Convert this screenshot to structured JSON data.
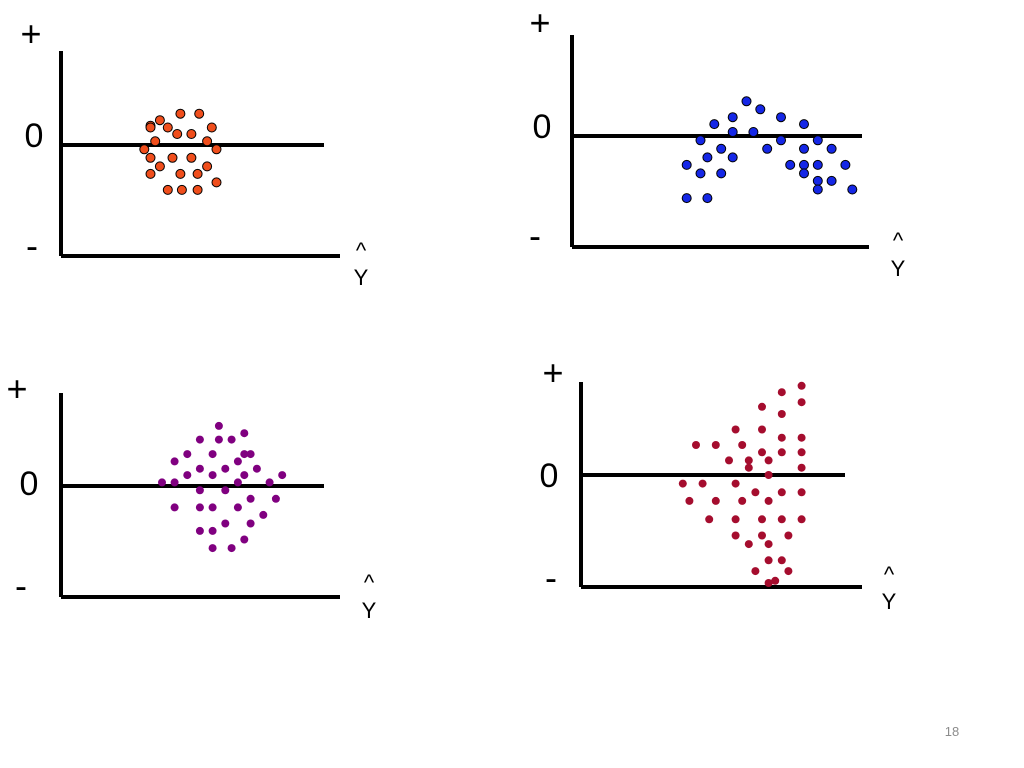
{
  "slide": {
    "page_number": "18"
  },
  "chart_data": [
    {
      "type": "scatter",
      "title": "",
      "ylabel_top": "+",
      "ylabel_mid": "0",
      "ylabel_bottom": "-",
      "xlabel_hat": "^",
      "xlabel": "Y",
      "xlim": [
        0,
        10
      ],
      "ylim": [
        -1,
        1
      ],
      "grid": false,
      "marker": {
        "color": "#f04e1c",
        "edge": "#000000",
        "style": "outlined"
      },
      "points": [
        [
          2.9,
          0.21
        ],
        [
          3.5,
          0.27
        ],
        [
          4.8,
          0.34
        ],
        [
          6.0,
          0.34
        ],
        [
          2.9,
          0.19
        ],
        [
          4.0,
          0.19
        ],
        [
          6.8,
          0.19
        ],
        [
          3.2,
          0.04
        ],
        [
          4.6,
          0.12
        ],
        [
          5.5,
          0.12
        ],
        [
          6.5,
          0.04
        ],
        [
          2.5,
          -0.04
        ],
        [
          7.1,
          -0.04
        ],
        [
          2.9,
          -0.12
        ],
        [
          3.5,
          -0.2
        ],
        [
          4.3,
          -0.12
        ],
        [
          5.5,
          -0.12
        ],
        [
          6.5,
          -0.2
        ],
        [
          2.9,
          -0.27
        ],
        [
          4.8,
          -0.27
        ],
        [
          5.9,
          -0.27
        ],
        [
          7.1,
          -0.35
        ],
        [
          4.0,
          -0.42
        ],
        [
          4.9,
          -0.42
        ],
        [
          5.9,
          -0.42
        ]
      ]
    },
    {
      "type": "scatter",
      "title": "",
      "ylabel_top": "+",
      "ylabel_mid": "0",
      "ylabel_bottom": "-",
      "xlabel_hat": "^",
      "xlabel": "Y",
      "xlim": [
        0,
        10
      ],
      "ylim": [
        -1,
        1
      ],
      "grid": false,
      "marker": {
        "color": "#1527e6",
        "edge": "#000000",
        "style": "outlined"
      },
      "points": [
        [
          5.5,
          0.35
        ],
        [
          6.1,
          0.27
        ],
        [
          4.9,
          0.19
        ],
        [
          7.0,
          0.19
        ],
        [
          4.1,
          0.12
        ],
        [
          8.0,
          0.12
        ],
        [
          4.9,
          0.04
        ],
        [
          5.8,
          0.04
        ],
        [
          3.5,
          -0.04
        ],
        [
          7.0,
          -0.04
        ],
        [
          8.6,
          -0.04
        ],
        [
          4.4,
          -0.12
        ],
        [
          6.4,
          -0.12
        ],
        [
          8.0,
          -0.12
        ],
        [
          9.2,
          -0.12
        ],
        [
          3.8,
          -0.2
        ],
        [
          4.9,
          -0.2
        ],
        [
          2.9,
          -0.27
        ],
        [
          7.4,
          -0.27
        ],
        [
          8.0,
          -0.27
        ],
        [
          8.6,
          -0.27
        ],
        [
          9.8,
          -0.27
        ],
        [
          3.5,
          -0.35
        ],
        [
          4.4,
          -0.35
        ],
        [
          8.0,
          -0.35
        ],
        [
          8.6,
          -0.42
        ],
        [
          9.2,
          -0.42
        ],
        [
          8.6,
          -0.5
        ],
        [
          10.1,
          -0.5
        ],
        [
          2.9,
          -0.58
        ],
        [
          3.8,
          -0.58
        ]
      ]
    },
    {
      "type": "scatter",
      "title": "",
      "ylabel_top": "+",
      "ylabel_mid": "0",
      "ylabel_bottom": "-",
      "xlabel_hat": "^",
      "xlabel": "Y",
      "xlim": [
        0,
        10
      ],
      "ylim": [
        -1,
        1
      ],
      "grid": false,
      "marker": {
        "color": "#800080",
        "edge": "#800080",
        "style": "filled"
      },
      "points": [
        [
          5.4,
          0.66
        ],
        [
          6.6,
          0.58
        ],
        [
          4.5,
          0.51
        ],
        [
          5.4,
          0.51
        ],
        [
          6.0,
          0.51
        ],
        [
          3.9,
          0.35
        ],
        [
          5.1,
          0.35
        ],
        [
          6.6,
          0.35
        ],
        [
          6.9,
          0.35
        ],
        [
          3.3,
          0.27
        ],
        [
          6.3,
          0.27
        ],
        [
          4.5,
          0.19
        ],
        [
          5.7,
          0.19
        ],
        [
          7.2,
          0.19
        ],
        [
          3.9,
          0.12
        ],
        [
          5.1,
          0.12
        ],
        [
          6.6,
          0.12
        ],
        [
          8.4,
          0.12
        ],
        [
          2.7,
          0.04
        ],
        [
          3.3,
          0.04
        ],
        [
          6.3,
          0.04
        ],
        [
          7.8,
          0.04
        ],
        [
          4.5,
          -0.04
        ],
        [
          5.7,
          -0.04
        ],
        [
          6.9,
          -0.12
        ],
        [
          8.1,
          -0.12
        ],
        [
          3.3,
          -0.2
        ],
        [
          4.5,
          -0.2
        ],
        [
          5.1,
          -0.2
        ],
        [
          6.3,
          -0.2
        ],
        [
          7.5,
          -0.27
        ],
        [
          5.7,
          -0.35
        ],
        [
          6.9,
          -0.35
        ],
        [
          4.5,
          -0.42
        ],
        [
          5.1,
          -0.42
        ],
        [
          6.6,
          -0.5
        ],
        [
          5.1,
          -0.58
        ],
        [
          6.0,
          -0.58
        ]
      ]
    },
    {
      "type": "scatter",
      "title": "",
      "ylabel_top": "+",
      "ylabel_mid": "0",
      "ylabel_bottom": "-",
      "xlabel_hat": "^",
      "xlabel": "Y",
      "xlim": [
        0,
        10
      ],
      "ylim": [
        -1,
        1
      ],
      "grid": false,
      "marker": {
        "color": "#a50d2e",
        "edge": "#a50d2e",
        "style": "filled"
      },
      "points": [
        [
          7.8,
          0.98
        ],
        [
          6.9,
          0.91
        ],
        [
          7.8,
          0.8
        ],
        [
          6.0,
          0.75
        ],
        [
          6.9,
          0.67
        ],
        [
          4.8,
          0.5
        ],
        [
          6.0,
          0.5
        ],
        [
          6.9,
          0.41
        ],
        [
          7.8,
          0.41
        ],
        [
          3.0,
          0.33
        ],
        [
          3.9,
          0.33
        ],
        [
          5.1,
          0.33
        ],
        [
          6.0,
          0.25
        ],
        [
          6.9,
          0.25
        ],
        [
          7.8,
          0.25
        ],
        [
          4.5,
          0.16
        ],
        [
          5.4,
          0.16
        ],
        [
          6.3,
          0.16
        ],
        [
          5.4,
          0.08
        ],
        [
          7.8,
          0.08
        ],
        [
          6.3,
          0.0
        ],
        [
          2.4,
          -0.08
        ],
        [
          3.3,
          -0.08
        ],
        [
          4.8,
          -0.08
        ],
        [
          5.7,
          -0.16
        ],
        [
          6.9,
          -0.16
        ],
        [
          7.8,
          -0.16
        ],
        [
          2.7,
          -0.24
        ],
        [
          3.9,
          -0.24
        ],
        [
          5.1,
          -0.24
        ],
        [
          6.3,
          -0.24
        ],
        [
          3.6,
          -0.41
        ],
        [
          4.8,
          -0.41
        ],
        [
          6.0,
          -0.41
        ],
        [
          6.9,
          -0.41
        ],
        [
          7.8,
          -0.41
        ],
        [
          4.8,
          -0.56
        ],
        [
          6.0,
          -0.56
        ],
        [
          7.2,
          -0.56
        ],
        [
          5.4,
          -0.64
        ],
        [
          6.3,
          -0.64
        ],
        [
          6.3,
          -0.79
        ],
        [
          6.9,
          -0.79
        ],
        [
          5.7,
          -0.89
        ],
        [
          7.2,
          -0.89
        ],
        [
          6.3,
          -1.0
        ],
        [
          6.6,
          -0.98
        ]
      ]
    }
  ]
}
